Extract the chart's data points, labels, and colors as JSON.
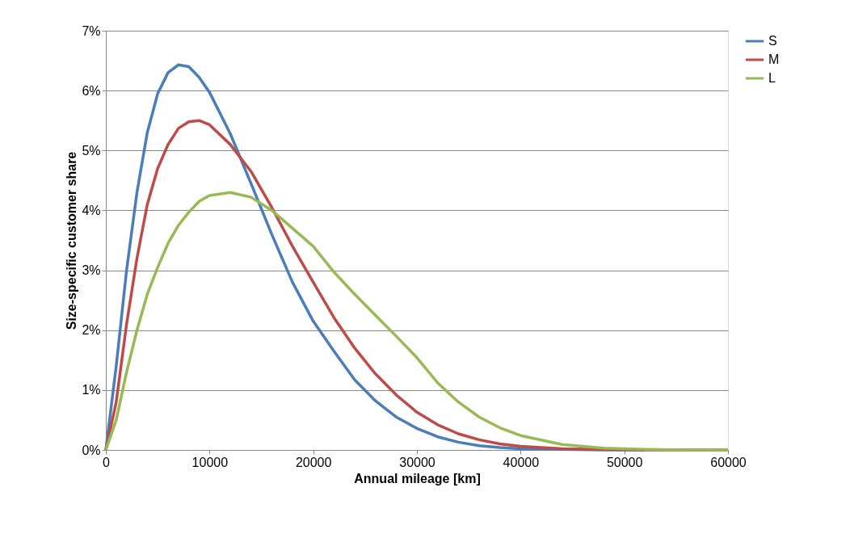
{
  "chart_data": {
    "type": "line",
    "xlabel": "Annual mileage [km]",
    "ylabel": "Size-specific customer share",
    "x": [
      0,
      1000,
      2000,
      3000,
      4000,
      5000,
      6000,
      7000,
      8000,
      9000,
      10000,
      12000,
      14000,
      16000,
      18000,
      20000,
      22000,
      24000,
      26000,
      28000,
      30000,
      32000,
      34000,
      36000,
      38000,
      40000,
      44000,
      48000,
      52000,
      56000,
      60000
    ],
    "series": [
      {
        "name": "S",
        "color": "#4a7ebb",
        "values": [
          0,
          1.4,
          3.0,
          4.3,
          5.3,
          5.95,
          6.3,
          6.43,
          6.4,
          6.22,
          5.97,
          5.28,
          4.45,
          3.6,
          2.8,
          2.15,
          1.65,
          1.17,
          0.82,
          0.55,
          0.36,
          0.22,
          0.13,
          0.07,
          0.04,
          0.02,
          0.01,
          0,
          0,
          null,
          null
        ]
      },
      {
        "name": "M",
        "color": "#be4b48",
        "values": [
          0,
          0.8,
          2.1,
          3.2,
          4.1,
          4.7,
          5.1,
          5.37,
          5.48,
          5.5,
          5.43,
          5.1,
          4.65,
          4.05,
          3.4,
          2.8,
          2.21,
          1.7,
          1.27,
          0.92,
          0.63,
          0.42,
          0.27,
          0.17,
          0.1,
          0.06,
          0.02,
          0.01,
          0,
          0,
          0
        ]
      },
      {
        "name": "L",
        "color": "#98b954",
        "values": [
          0,
          0.5,
          1.3,
          2.0,
          2.6,
          3.05,
          3.45,
          3.75,
          3.97,
          4.15,
          4.25,
          4.3,
          4.22,
          4.0,
          3.7,
          3.4,
          2.97,
          2.6,
          2.25,
          1.9,
          1.54,
          1.12,
          0.8,
          0.55,
          0.37,
          0.24,
          0.09,
          0.03,
          0.01,
          0,
          0
        ]
      }
    ],
    "xlim": [
      0,
      60000
    ],
    "xticks": [
      0,
      10000,
      20000,
      30000,
      40000,
      50000,
      60000
    ],
    "ylim": [
      0,
      7
    ],
    "yticks": [
      {
        "value": 0,
        "label": "0%"
      },
      {
        "value": 1,
        "label": "1%"
      },
      {
        "value": 2,
        "label": "2%"
      },
      {
        "value": 3,
        "label": "3%"
      },
      {
        "value": 4,
        "label": "4%"
      },
      {
        "value": 5,
        "label": "5%"
      },
      {
        "value": 6,
        "label": "6%"
      },
      {
        "value": 7,
        "label": "7%"
      }
    ],
    "grid": "y",
    "legend": "right",
    "marker": "none",
    "line_style": "solid"
  }
}
